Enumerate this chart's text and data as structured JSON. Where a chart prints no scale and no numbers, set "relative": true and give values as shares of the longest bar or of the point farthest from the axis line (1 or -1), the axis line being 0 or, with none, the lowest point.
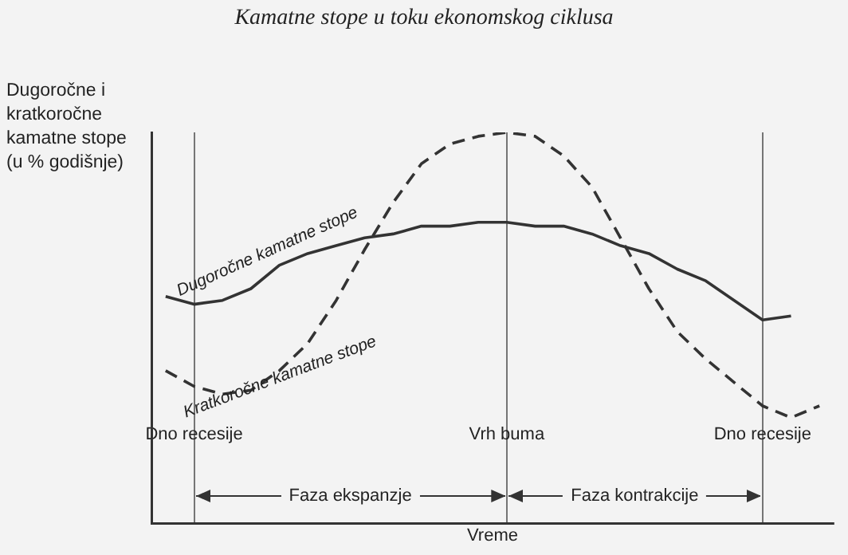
{
  "chart_data": {
    "type": "line",
    "title": "Kamatne stope u toku ekonomskog ciklusa",
    "xlabel": "Vreme",
    "ylabel": "Dugoročne i kratkoročne kamatne stope (u % godišnje)",
    "relative": true,
    "tick_labels": "x",
    "legend": false,
    "grid": "x",
    "marker": "none",
    "categories": [
      null,
      "Dno recesije",
      null,
      null,
      null,
      null,
      null,
      null,
      null,
      null,
      null,
      null,
      "Vrh buma",
      null,
      null,
      null,
      null,
      null,
      null,
      null,
      null,
      "Dno recesije",
      null,
      null
    ],
    "series": [
      {
        "name": "Dugoročne kamatne stope",
        "color": "#333333",
        "line_style": "solid",
        "values": [
          0.58,
          0.56,
          0.57,
          0.6,
          0.66,
          0.69,
          0.71,
          0.73,
          0.74,
          0.76,
          0.76,
          0.77,
          0.77,
          0.76,
          0.76,
          0.74,
          0.71,
          0.69,
          0.65,
          0.62,
          0.57,
          0.52,
          0.53,
          null
        ]
      },
      {
        "name": "Kratkoročne kamatne stope",
        "color": "#333333",
        "line_style": "dashed",
        "values": [
          0.39,
          0.35,
          0.33,
          0.34,
          0.39,
          0.46,
          0.57,
          0.7,
          0.82,
          0.92,
          0.97,
          0.99,
          1,
          0.99,
          0.94,
          0.86,
          0.73,
          0.6,
          0.49,
          0.42,
          0.36,
          0.3,
          0.27,
          0.3
        ]
      }
    ],
    "annotations": [
      "Faza ekspanzje",
      "Faza kontrakcije"
    ]
  }
}
